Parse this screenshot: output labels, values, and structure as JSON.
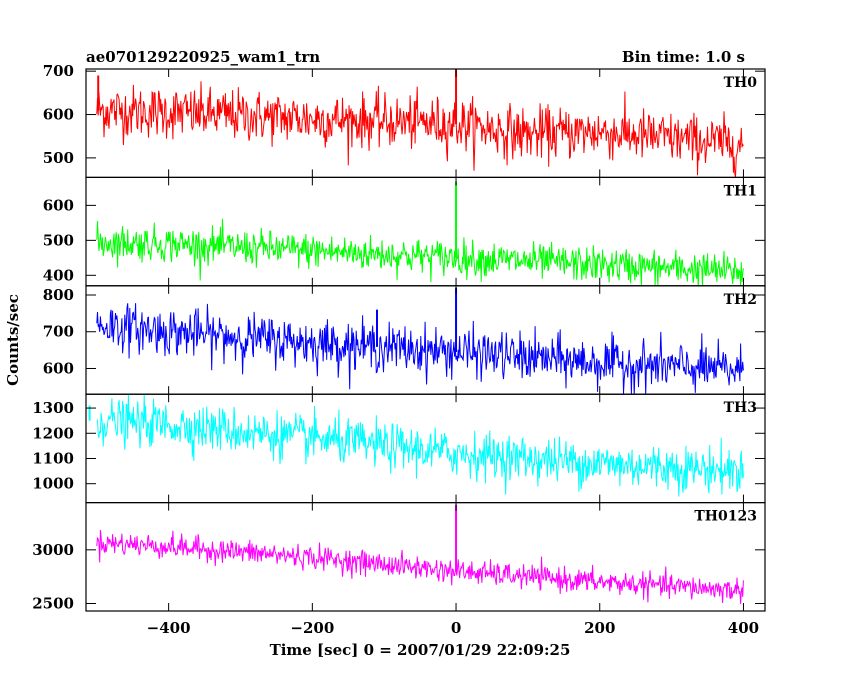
{
  "header": {
    "left_title": "ae070129220925_wam1_trn",
    "right_title": "Bin time: 1.0 s"
  },
  "chart_data": {
    "type": "line",
    "title": "ae070129220925_wam1_trn",
    "subtitle": "Bin time: 1.0 s",
    "xlabel": "Time [sec] 0 = 2007/01/29 22:09:25",
    "ylabel": "Counts/sec",
    "xlim": [
      -515,
      430
    ],
    "x_ticks": [
      -400,
      -200,
      0,
      200,
      400
    ],
    "x_tick_labels": [
      "−400",
      "−200",
      "0",
      "200",
      "400"
    ],
    "x_range_of_data": [
      -500,
      400
    ],
    "bin_time_s": 1.0,
    "grid": false,
    "panels": [
      {
        "name": "TH0",
        "color": "#ff0000",
        "ylim": [
          455,
          705
        ],
        "y_ticks": [
          500,
          600,
          700
        ],
        "y_tick_labels": [
          "500",
          "600",
          "700"
        ],
        "trend": {
          "x": [
            -500,
            -400,
            -200,
            0,
            100,
            200,
            400
          ],
          "y": [
            610,
            605,
            590,
            578,
            555,
            560,
            530
          ]
        },
        "noise_sd": 30,
        "spikes": [
          {
            "x": 0,
            "y": 705
          },
          {
            "x": -498,
            "y": 690
          }
        ]
      },
      {
        "name": "TH1",
        "color": "#00ff00",
        "ylim": [
          370,
          680
        ],
        "y_ticks": [
          400,
          500,
          600
        ],
        "y_tick_labels": [
          "400",
          "500",
          "600"
        ],
        "trend": {
          "x": [
            -500,
            -400,
            -200,
            0,
            200,
            400
          ],
          "y": [
            495,
            490,
            470,
            450,
            430,
            410
          ]
        },
        "noise_sd": 25,
        "spikes": [
          {
            "x": 0,
            "y": 668
          }
        ]
      },
      {
        "name": "TH2",
        "color": "#0000ff",
        "ylim": [
          530,
          825
        ],
        "y_ticks": [
          600,
          700,
          800
        ],
        "y_tick_labels": [
          "600",
          "700",
          "800"
        ],
        "trend": {
          "x": [
            -500,
            -400,
            -200,
            0,
            200,
            400
          ],
          "y": [
            720,
            700,
            670,
            645,
            615,
            595
          ]
        },
        "noise_sd": 32,
        "spikes": [
          {
            "x": 0,
            "y": 820
          },
          {
            "x": -110,
            "y": 760
          }
        ]
      },
      {
        "name": "TH3",
        "color": "#00ffff",
        "ylim": [
          925,
          1355
        ],
        "y_ticks": [
          1000,
          1100,
          1200,
          1300
        ],
        "y_tick_labels": [
          "1000",
          "1100",
          "1200",
          "1300"
        ],
        "trend": {
          "x": [
            -500,
            -400,
            -200,
            0,
            200,
            400
          ],
          "y": [
            1250,
            1235,
            1180,
            1120,
            1080,
            1050
          ]
        },
        "noise_sd": 45,
        "spikes": [
          {
            "x": -510,
            "y": 1310
          }
        ]
      },
      {
        "name": "TH0123",
        "color": "#ff00ff",
        "ylim": [
          2430,
          3440
        ],
        "y_ticks": [
          2500,
          3000
        ],
        "y_tick_labels": [
          "2500",
          "3000"
        ],
        "trend": {
          "x": [
            -500,
            -400,
            -200,
            0,
            200,
            400
          ],
          "y": [
            3070,
            3030,
            2930,
            2800,
            2700,
            2620
          ]
        },
        "noise_sd": 55,
        "spikes": [
          {
            "x": 0,
            "y": 3420
          }
        ]
      }
    ]
  }
}
